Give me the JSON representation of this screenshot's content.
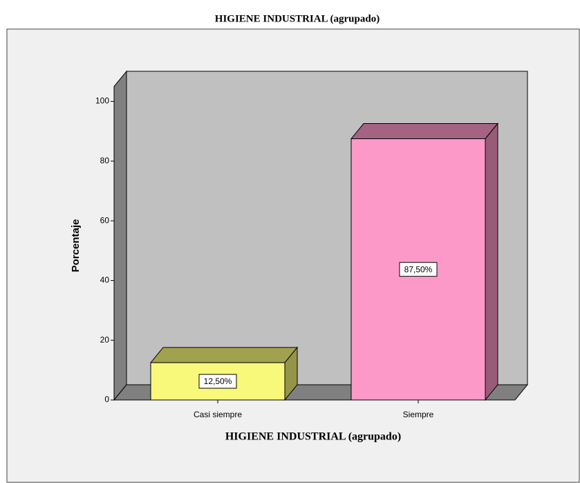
{
  "chart_data": {
    "type": "bar3d",
    "title": "HIGIENE INDUSTRIAL (agrupado)",
    "x_label": "HIGIENE INDUSTRIAL (agrupado)",
    "y_label": "Porcentaje",
    "categories": [
      "Casi siempre",
      "Siempre"
    ],
    "values": [
      12.5,
      87.5
    ],
    "value_labels": [
      "12,50%",
      "87,50%"
    ],
    "colors": [
      "#f8f87a",
      "#fd99c9"
    ],
    "ylim": [
      0,
      105
    ],
    "yticks": [
      0,
      20,
      40,
      60,
      80,
      100
    ]
  }
}
